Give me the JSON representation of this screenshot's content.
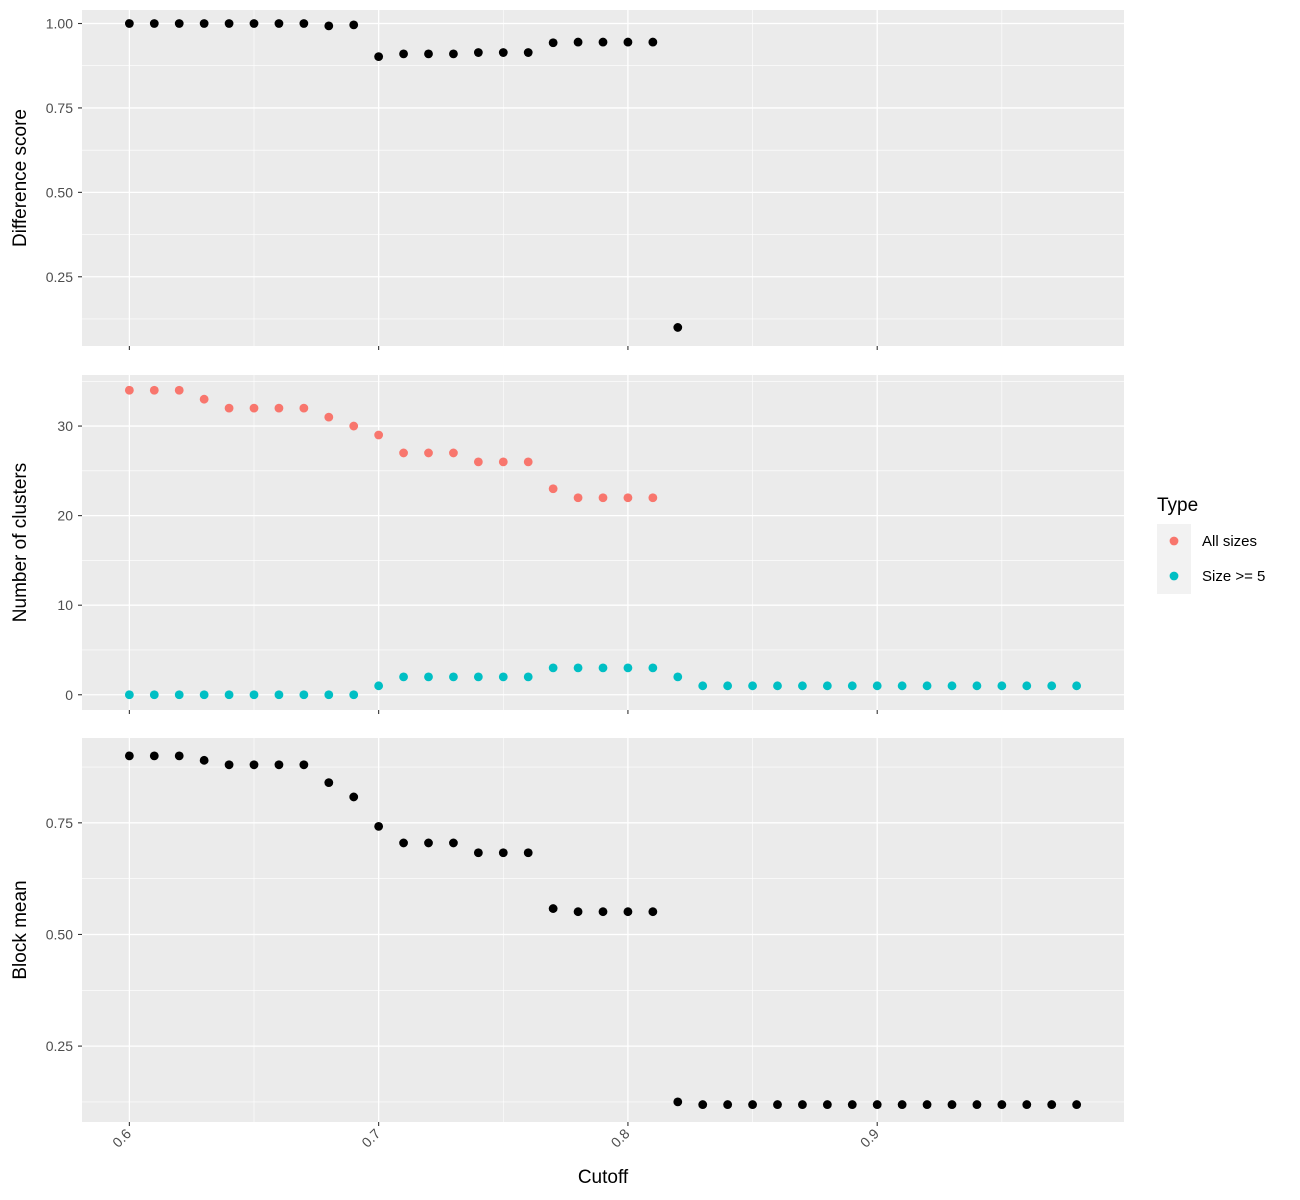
{
  "chart_data": {
    "type": "scatter",
    "x_label": "Cutoff",
    "x_range": [
      0.581,
      0.999
    ],
    "x_ticks": [
      0.6,
      0.7,
      0.8,
      0.9
    ],
    "x_tick_labels": [
      "0.6",
      "0.7",
      "0.8",
      "0.9"
    ],
    "panels": [
      {
        "id": "difference",
        "ylabel": "Difference score",
        "ylim": [
          0.045,
          1.04
        ],
        "y_ticks": [
          0.25,
          0.5,
          0.75,
          1.0
        ],
        "y_tick_labels": [
          "0.25",
          "0.50",
          "0.75",
          "1.00"
        ],
        "series": [
          {
            "color": "#000000",
            "x": [
              0.6,
              0.61,
              0.62,
              0.63,
              0.64,
              0.65,
              0.66,
              0.67,
              0.68,
              0.69,
              0.7,
              0.71,
              0.72,
              0.73,
              0.74,
              0.75,
              0.76,
              0.77,
              0.78,
              0.79,
              0.8,
              0.81,
              0.82
            ],
            "y": [
              1.0,
              1.0,
              1.0,
              1.0,
              1.0,
              1.0,
              1.0,
              1.0,
              0.993,
              0.996,
              0.902,
              0.91,
              0.91,
              0.91,
              0.914,
              0.914,
              0.914,
              0.943,
              0.945,
              0.945,
              0.945,
              0.945,
              0.1
            ]
          }
        ]
      },
      {
        "id": "clusters",
        "ylabel": "Number of clusters",
        "ylim": [
          -1.7,
          35.7
        ],
        "y_ticks": [
          0,
          10,
          20,
          30
        ],
        "y_tick_labels": [
          "0",
          "10",
          "20",
          "30"
        ],
        "series": [
          {
            "name": "All sizes",
            "color": "#F8766D",
            "x": [
              0.6,
              0.61,
              0.62,
              0.63,
              0.64,
              0.65,
              0.66,
              0.67,
              0.68,
              0.69,
              0.7,
              0.71,
              0.72,
              0.73,
              0.74,
              0.75,
              0.76,
              0.77,
              0.78,
              0.79,
              0.8,
              0.81
            ],
            "y": [
              34,
              34,
              34,
              33,
              32,
              32,
              32,
              32,
              31,
              30,
              29,
              27,
              27,
              27,
              26,
              26,
              26,
              23,
              22,
              22,
              22,
              22
            ]
          },
          {
            "name": "Size >= 5",
            "color": "#00BFC4",
            "x": [
              0.6,
              0.61,
              0.62,
              0.63,
              0.64,
              0.65,
              0.66,
              0.67,
              0.68,
              0.69,
              0.7,
              0.71,
              0.72,
              0.73,
              0.74,
              0.75,
              0.76,
              0.77,
              0.78,
              0.79,
              0.8,
              0.81,
              0.82,
              0.83,
              0.84,
              0.85,
              0.86,
              0.87,
              0.88,
              0.89,
              0.9,
              0.91,
              0.92,
              0.93,
              0.94,
              0.95,
              0.96,
              0.97,
              0.98
            ],
            "y": [
              0,
              0,
              0,
              0,
              0,
              0,
              0,
              0,
              0,
              0,
              1,
              2,
              2,
              2,
              2,
              2,
              2,
              3,
              3,
              3,
              3,
              3,
              2,
              1,
              1,
              1,
              1,
              1,
              1,
              1,
              1,
              1,
              1,
              1,
              1,
              1,
              1,
              1,
              1
            ]
          }
        ]
      },
      {
        "id": "blockmean",
        "ylabel": "Block mean",
        "ylim": [
          0.08,
          0.94
        ],
        "y_ticks": [
          0.25,
          0.5,
          0.75
        ],
        "y_tick_labels": [
          "0.25",
          "0.50",
          "0.75"
        ],
        "series": [
          {
            "color": "#000000",
            "x": [
              0.6,
              0.61,
              0.62,
              0.63,
              0.64,
              0.65,
              0.66,
              0.67,
              0.68,
              0.69,
              0.7,
              0.71,
              0.72,
              0.73,
              0.74,
              0.75,
              0.76,
              0.77,
              0.78,
              0.79,
              0.8,
              0.81,
              0.82,
              0.83,
              0.84,
              0.85,
              0.86,
              0.87,
              0.88,
              0.89,
              0.9,
              0.91,
              0.92,
              0.93,
              0.94,
              0.95,
              0.96,
              0.97,
              0.98
            ],
            "y": [
              0.9,
              0.9,
              0.9,
              0.89,
              0.88,
              0.88,
              0.88,
              0.88,
              0.84,
              0.808,
              0.742,
              0.705,
              0.705,
              0.705,
              0.683,
              0.683,
              0.683,
              0.558,
              0.551,
              0.551,
              0.551,
              0.551,
              0.125,
              0.119,
              0.119,
              0.119,
              0.119,
              0.119,
              0.119,
              0.119,
              0.119,
              0.119,
              0.119,
              0.119,
              0.119,
              0.119,
              0.119,
              0.119,
              0.119
            ]
          }
        ]
      }
    ],
    "legend": {
      "title": "Type",
      "position": "right",
      "entries": [
        {
          "label": "All sizes",
          "color": "#F8766D"
        },
        {
          "label": "Size >= 5",
          "color": "#00BFC4"
        }
      ]
    },
    "grid": true,
    "panel_background": "#EBEBEB",
    "grid_color": "#FFFFFF"
  }
}
